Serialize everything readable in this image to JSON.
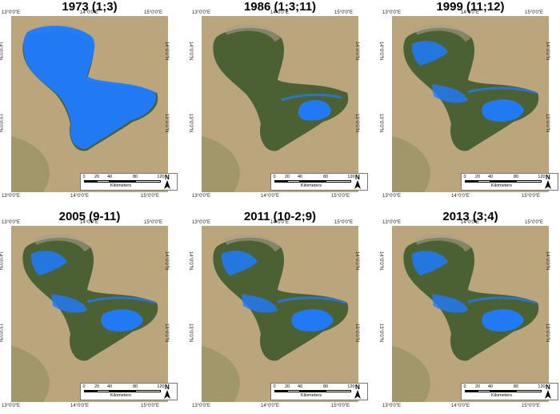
{
  "panels": [
    {
      "title": "1973 (1;3)",
      "water": "full"
    },
    {
      "title": "1986 (1;3;11)",
      "water": "south"
    },
    {
      "title": "1999 (11;12)",
      "water": "partial"
    },
    {
      "title": "2005 (9-11)",
      "water": "partial"
    },
    {
      "title": "2011 (10-2;9)",
      "water": "partial"
    },
    {
      "title": "2013 (3;4)",
      "water": "partial"
    }
  ],
  "coords": {
    "lon_13": "13°0'0\"E",
    "lon_14": "14°0'0\"E",
    "lon_15": "15°0'0\"E",
    "lat_14": "14°0'0\"N",
    "lat_13": "13°0'0\"N"
  },
  "scale": {
    "ticks": [
      "0",
      "20",
      "40",
      "80",
      "120"
    ],
    "unit": "Kilometers",
    "north": "N"
  },
  "colors": {
    "water": "#1f7bff",
    "vegetation": "#3f5a2c",
    "desert": "#b09a70",
    "sand": "#cdbb94"
  }
}
